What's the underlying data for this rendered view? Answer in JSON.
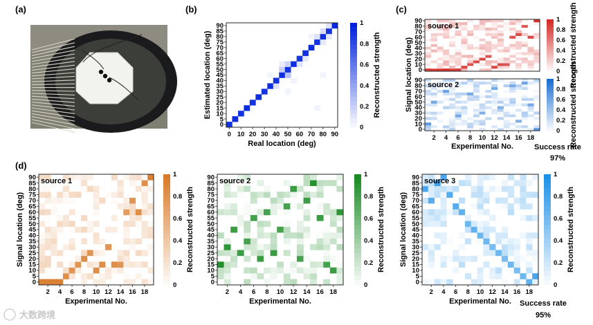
{
  "panel_labels": [
    "(a)",
    "(b)",
    "(c)",
    "(d)"
  ],
  "photo_alt": "Photograph of an octagonal white plate with a dark ring of tuning rods",
  "watermark": "大数跨境",
  "colorbar_ticks": [
    "0",
    "0.2",
    "0.4",
    "0.6",
    "0.8",
    "1"
  ],
  "colorbar_label": "Reconstructed strength",
  "colors": {
    "blue_dark": "#0022dd",
    "red_dark": "#d42a25",
    "blue_light": "#1a6fd4",
    "orange": "#d97a2a",
    "green": "#188a22",
    "sky": "#1e90e8"
  },
  "panel_b": {
    "xlabel": "Real location (deg)",
    "ylabel": "Estimated location (deg)",
    "x_ticks": [
      "0",
      "10",
      "20",
      "30",
      "40",
      "50",
      "60",
      "70",
      "80",
      "90"
    ],
    "y_ticks": [
      "0",
      "5",
      "10",
      "15",
      "20",
      "25",
      "30",
      "35",
      "40",
      "45",
      "50",
      "55",
      "60",
      "65",
      "70",
      "75",
      "80",
      "85",
      "90"
    ]
  },
  "panel_c": {
    "ylabel": "Signal location (deg)",
    "xlabel": "Experimental No.",
    "y_ticks": [
      "0",
      "10",
      "20",
      "30",
      "40",
      "50",
      "60",
      "70",
      "80",
      "90"
    ],
    "x_ticks": [
      "2",
      "4",
      "6",
      "8",
      "10",
      "12",
      "14",
      "16",
      "18"
    ],
    "source1_label": "source 1",
    "source2_label": "source 2",
    "success_label": "Success rate",
    "success_value": "97%"
  },
  "panel_d": {
    "ylabel": "Signal location (deg)",
    "xlabel": "Experimental No.",
    "y_ticks": [
      "0",
      "5",
      "10",
      "15",
      "20",
      "25",
      "30",
      "35",
      "40",
      "45",
      "50",
      "55",
      "60",
      "65",
      "70",
      "75",
      "80",
      "85",
      "90"
    ],
    "x_ticks": [
      "2",
      "4",
      "6",
      "8",
      "10",
      "12",
      "14",
      "16",
      "18"
    ],
    "source1_label": "source 1",
    "source2_label": "source 2",
    "source3_label": "source 3",
    "success_label": "Success rate",
    "success_value": "95%"
  },
  "chart_data": [
    {
      "id": "b",
      "type": "heatmap",
      "title": "",
      "xlabel": "Real location (deg)",
      "ylabel": "Estimated location (deg)",
      "x": [
        0,
        5,
        10,
        15,
        20,
        25,
        30,
        35,
        40,
        45,
        50,
        55,
        60,
        65,
        70,
        75,
        80,
        85,
        90
      ],
      "y": [
        0,
        5,
        10,
        15,
        20,
        25,
        30,
        35,
        40,
        45,
        50,
        55,
        60,
        65,
        70,
        75,
        80,
        85,
        90
      ],
      "colorbar": {
        "label": "Reconstructed strength",
        "range": [
          0,
          1
        ]
      },
      "description": "Strong diagonal: estimated location equals real location",
      "points": [
        [
          0,
          0,
          0.92
        ],
        [
          1,
          1,
          0.95
        ],
        [
          2,
          2,
          0.93
        ],
        [
          3,
          3,
          0.96
        ],
        [
          4,
          4,
          0.93
        ],
        [
          5,
          5,
          0.95
        ],
        [
          6,
          6,
          0.92
        ],
        [
          7,
          7,
          0.94
        ],
        [
          8,
          8,
          0.93
        ],
        [
          9,
          9,
          0.95
        ],
        [
          10,
          10,
          0.92
        ],
        [
          11,
          11,
          0.94
        ],
        [
          12,
          12,
          0.9
        ],
        [
          13,
          13,
          0.93
        ],
        [
          14,
          14,
          0.95
        ],
        [
          15,
          15,
          0.92
        ],
        [
          16,
          16,
          0.93
        ],
        [
          17,
          17,
          0.92
        ],
        [
          18,
          18,
          0.97
        ],
        [
          10,
          9,
          0.28
        ],
        [
          9,
          10,
          0.22
        ],
        [
          10,
          11,
          0.2
        ],
        [
          8,
          7,
          0.12
        ],
        [
          12,
          11,
          0.12
        ],
        [
          13,
          12,
          0.1
        ],
        [
          15,
          16,
          0.12
        ],
        [
          16,
          15,
          0.1
        ],
        [
          16,
          17,
          0.14
        ],
        [
          17,
          16,
          0.1
        ],
        [
          17,
          18,
          0.12
        ],
        [
          15,
          3,
          0.06
        ],
        [
          9,
          11,
          0.08
        ],
        [
          11,
          8,
          0.06
        ],
        [
          16,
          9,
          0.05
        ],
        [
          7,
          9,
          0.05
        ],
        [
          14,
          16,
          0.05
        ],
        [
          10,
          6,
          0.05
        ]
      ]
    },
    {
      "id": "c-source1",
      "type": "heatmap",
      "xlabel": "Experimental No.",
      "ylabel": "Signal location (deg)",
      "x": [
        1,
        2,
        3,
        4,
        5,
        6,
        7,
        8,
        9,
        10,
        11,
        12,
        13,
        14,
        15,
        16,
        17,
        18,
        19
      ],
      "y": [
        0,
        5,
        10,
        15,
        20,
        25,
        30,
        35,
        40,
        45,
        50,
        55,
        60,
        65,
        70,
        75,
        80,
        85,
        90
      ],
      "colorbar": {
        "label": "Reconstructed strength",
        "range": [
          0,
          1
        ]
      },
      "peaks": [
        [
          0,
          0,
          0.9
        ],
        [
          1,
          0,
          0.95
        ],
        [
          2,
          0,
          0.95
        ],
        [
          3,
          0,
          0.95
        ],
        [
          4,
          0,
          0.9
        ],
        [
          5,
          0,
          0.9
        ],
        [
          6,
          1,
          0.85
        ],
        [
          7,
          2,
          0.8
        ],
        [
          8,
          3,
          0.85
        ],
        [
          9,
          4,
          0.85
        ],
        [
          10,
          5,
          0.8
        ],
        [
          11,
          1,
          0.85
        ],
        [
          12,
          2,
          0.85
        ],
        [
          13,
          2,
          0.8
        ],
        [
          14,
          12,
          0.8
        ],
        [
          15,
          13,
          0.85
        ],
        [
          16,
          16,
          0.8
        ],
        [
          17,
          12,
          0.85
        ],
        [
          18,
          18,
          0.95
        ]
      ]
    },
    {
      "id": "c-source2",
      "type": "heatmap",
      "xlabel": "Experimental No.",
      "ylabel": "Signal location (deg)",
      "x": [
        1,
        2,
        3,
        4,
        5,
        6,
        7,
        8,
        9,
        10,
        11,
        12,
        13,
        14,
        15,
        16,
        17,
        18,
        19
      ],
      "y": [
        0,
        5,
        10,
        15,
        20,
        25,
        30,
        35,
        40,
        45,
        50,
        55,
        60,
        65,
        70,
        75,
        80,
        85,
        90
      ],
      "colorbar": {
        "label": "Reconstructed strength",
        "range": [
          0,
          1
        ]
      },
      "peaks": [
        [
          0,
          2,
          0.7
        ],
        [
          1,
          10,
          0.6
        ],
        [
          3,
          14,
          0.65
        ],
        [
          5,
          5,
          0.6
        ],
        [
          7,
          13,
          0.6
        ],
        [
          9,
          6,
          0.55
        ],
        [
          11,
          15,
          0.6
        ],
        [
          12,
          8,
          0.55
        ],
        [
          14,
          16,
          0.6
        ],
        [
          15,
          3,
          0.55
        ],
        [
          16,
          17,
          0.65
        ],
        [
          17,
          9,
          0.6
        ],
        [
          18,
          0,
          0.75
        ]
      ]
    },
    {
      "id": "d-source1",
      "type": "heatmap",
      "xlabel": "Experimental No.",
      "ylabel": "Signal location (deg)",
      "x": [
        1,
        2,
        3,
        4,
        5,
        6,
        7,
        8,
        9,
        10,
        11,
        12,
        13,
        14,
        15,
        16,
        17,
        18,
        19
      ],
      "y": [
        0,
        5,
        10,
        15,
        20,
        25,
        30,
        35,
        40,
        45,
        50,
        55,
        60,
        65,
        70,
        75,
        80,
        85,
        90
      ],
      "colorbar": {
        "label": "Reconstructed strength",
        "range": [
          0,
          1
        ]
      },
      "peaks": [
        [
          0,
          0,
          0.95
        ],
        [
          1,
          0,
          0.95
        ],
        [
          2,
          0,
          0.95
        ],
        [
          3,
          0,
          0.95
        ],
        [
          4,
          1,
          0.85
        ],
        [
          5,
          2,
          0.8
        ],
        [
          6,
          3,
          0.8
        ],
        [
          7,
          4,
          0.85
        ],
        [
          8,
          5,
          0.8
        ],
        [
          9,
          2,
          0.85
        ],
        [
          10,
          3,
          0.85
        ],
        [
          11,
          6,
          0.8
        ],
        [
          12,
          3,
          0.85
        ],
        [
          13,
          3,
          0.8
        ],
        [
          14,
          12,
          0.75
        ],
        [
          15,
          14,
          0.8
        ],
        [
          16,
          12,
          0.85
        ],
        [
          17,
          17,
          0.85
        ],
        [
          18,
          18,
          0.95
        ]
      ]
    },
    {
      "id": "d-source2",
      "type": "heatmap",
      "xlabel": "Experimental No.",
      "ylabel": "Signal location (deg)",
      "x": [
        1,
        2,
        3,
        4,
        5,
        6,
        7,
        8,
        9,
        10,
        11,
        12,
        13,
        14,
        15,
        16,
        17,
        18,
        19
      ],
      "y": [
        0,
        5,
        10,
        15,
        20,
        25,
        30,
        35,
        40,
        45,
        50,
        55,
        60,
        65,
        70,
        75,
        80,
        85,
        90
      ],
      "colorbar": {
        "label": "Reconstructed strength",
        "range": [
          0,
          1
        ]
      },
      "peaks": [
        [
          0,
          3,
          0.95
        ],
        [
          1,
          6,
          0.9
        ],
        [
          2,
          9,
          0.85
        ],
        [
          3,
          5,
          0.85
        ],
        [
          4,
          7,
          0.8
        ],
        [
          5,
          11,
          0.8
        ],
        [
          6,
          4,
          0.85
        ],
        [
          7,
          12,
          0.8
        ],
        [
          8,
          5,
          0.85
        ],
        [
          9,
          9,
          0.8
        ],
        [
          10,
          13,
          0.8
        ],
        [
          11,
          16,
          0.85
        ],
        [
          12,
          4,
          0.8
        ],
        [
          13,
          14,
          0.85
        ],
        [
          14,
          17,
          0.95
        ],
        [
          15,
          11,
          0.85
        ],
        [
          16,
          3,
          0.8
        ],
        [
          17,
          2,
          0.85
        ],
        [
          18,
          12,
          0.9
        ]
      ]
    },
    {
      "id": "d-source3",
      "type": "heatmap",
      "xlabel": "Experimental No.",
      "ylabel": "Signal location (deg)",
      "x": [
        1,
        2,
        3,
        4,
        5,
        6,
        7,
        8,
        9,
        10,
        11,
        12,
        13,
        14,
        15,
        16,
        17,
        18,
        19
      ],
      "y": [
        0,
        5,
        10,
        15,
        20,
        25,
        30,
        35,
        40,
        45,
        50,
        55,
        60,
        65,
        70,
        75,
        80,
        85,
        90
      ],
      "colorbar": {
        "label": "Reconstructed strength",
        "range": [
          0,
          1
        ]
      },
      "peaks": [
        [
          0,
          16,
          0.8
        ],
        [
          1,
          14,
          0.75
        ],
        [
          2,
          17,
          0.85
        ],
        [
          3,
          18,
          0.8
        ],
        [
          4,
          15,
          0.75
        ],
        [
          5,
          13,
          0.75
        ],
        [
          6,
          12,
          0.7
        ],
        [
          7,
          10,
          0.65
        ],
        [
          8,
          9,
          0.7
        ],
        [
          9,
          8,
          0.65
        ],
        [
          10,
          7,
          0.65
        ],
        [
          11,
          6,
          0.6
        ],
        [
          12,
          5,
          0.65
        ],
        [
          13,
          4,
          0.6
        ],
        [
          14,
          3,
          0.65
        ],
        [
          15,
          2,
          0.6
        ],
        [
          16,
          1,
          0.65
        ],
        [
          17,
          0,
          0.7
        ],
        [
          18,
          1,
          0.8
        ]
      ]
    }
  ]
}
